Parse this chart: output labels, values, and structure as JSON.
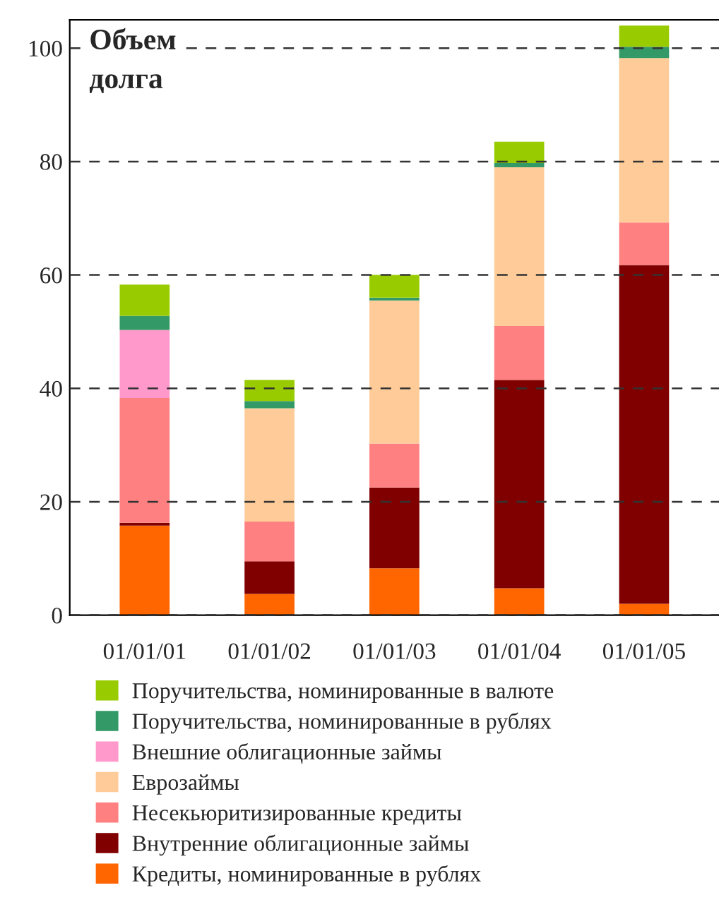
{
  "chart_data": {
    "type": "bar",
    "title": "Объем\nдолга",
    "stacked": true,
    "categories": [
      "01/01/01",
      "01/01/02",
      "01/01/03",
      "01/01/04",
      "01/01/05"
    ],
    "series": [
      {
        "name": "Кредиты, номинированные в рублях",
        "color": "#ff6600",
        "values": [
          15.8,
          3.75,
          8.25,
          4.75,
          2
        ]
      },
      {
        "name": "Внутренние облигационные займы",
        "color": "#800000",
        "values": [
          0.5,
          5.75,
          14.25,
          36.75,
          59.75
        ]
      },
      {
        "name": "Несекьюритизированные кредиты",
        "color": "#ff8080",
        "values": [
          22,
          7,
          7.75,
          9.5,
          7.5
        ]
      },
      {
        "name": "Еврозаймы",
        "color": "#ffcc99",
        "values": [
          0,
          20,
          25.25,
          28,
          29
        ]
      },
      {
        "name": "Внешние облигационные займы",
        "color": "#ff99cc",
        "values": [
          12,
          0,
          0,
          0,
          0
        ]
      },
      {
        "name": "Поручительства, номинированные в рублях",
        "color": "#339966",
        "values": [
          2.5,
          1.25,
          0.5,
          0.75,
          2
        ]
      },
      {
        "name": "Поручительства, номинированные в валюте",
        "color": "#99cc00",
        "values": [
          5.5,
          3.75,
          4,
          3.75,
          3.75
        ]
      }
    ],
    "ylim": [
      0,
      105
    ],
    "yticks": [
      0,
      20,
      40,
      60,
      80,
      100
    ],
    "grid": "y",
    "legend": "bottom"
  }
}
